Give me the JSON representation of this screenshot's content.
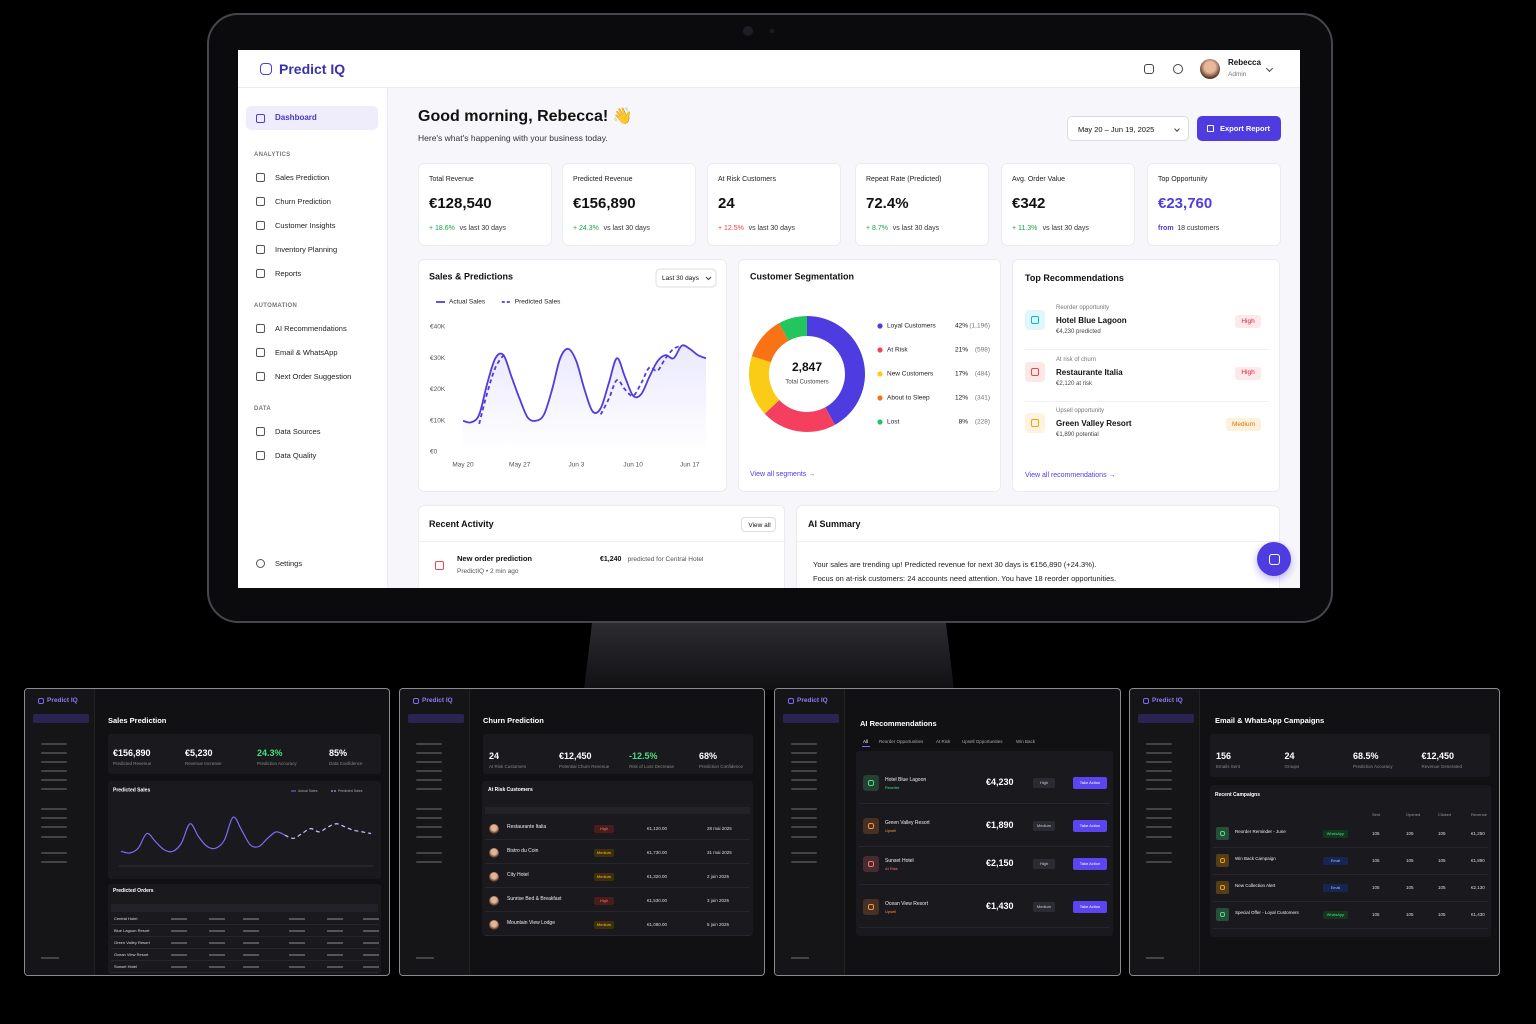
{
  "header": {
    "logo": "Predict IQ",
    "user_name": "Rebecca",
    "user_role": "Admin"
  },
  "sidebar": {
    "active": "Dashboard",
    "sections": [
      {
        "title": "ANALYTICS",
        "items": [
          "Sales Prediction",
          "Churn Prediction",
          "Customer Insights",
          "Inventory Planning",
          "Reports"
        ]
      },
      {
        "title": "AUTOMATION",
        "items": [
          "AI Recommendations",
          "Email & WhatsApp",
          "Next Order Suggestion"
        ]
      },
      {
        "title": "DATA",
        "items": [
          "Data Sources",
          "Data Quality"
        ]
      }
    ],
    "settings": "Settings"
  },
  "greeting": {
    "title": "Good morning, Rebecca! 👋",
    "subtitle": "Here's what's happening with your business today.",
    "date_range": "May 20 – Jun 19, 2025",
    "export": "Export Report"
  },
  "kpis": [
    {
      "label": "Total Revenue",
      "value": "€128,540",
      "change": "+ 18.6%",
      "note": "vs last 30 days",
      "trend": "up"
    },
    {
      "label": "Predicted Revenue",
      "value": "€156,890",
      "change": "+ 24.3%",
      "note": "vs last 30 days",
      "trend": "up"
    },
    {
      "label": "At Risk Customers",
      "value": "24",
      "change": "+ 12.5%",
      "note": "vs last 30 days",
      "trend": "down"
    },
    {
      "label": "Repeat Rate (Predicted)",
      "value": "72.4%",
      "change": "+ 8.7%",
      "note": "vs last 30 days",
      "trend": "up"
    },
    {
      "label": "Avg. Order Value",
      "value": "€342",
      "change": "+ 11.3%",
      "note": "vs last 30 days",
      "trend": "up"
    },
    {
      "label": "Top Opportunity",
      "value": "€23,760",
      "change": "from",
      "note": "18 customers",
      "trend": "highlight"
    }
  ],
  "chart_data": [
    {
      "type": "line",
      "title": "Sales & Predictions",
      "period": "Last 30 days",
      "categories": [
        "May 20",
        null,
        null,
        null,
        null,
        null,
        null,
        "May 27",
        null,
        null,
        null,
        null,
        null,
        null,
        "Jun 3",
        null,
        null,
        null,
        null,
        null,
        null,
        "Jun 10",
        null,
        null,
        null,
        null,
        null,
        null,
        "Jun 17",
        null,
        null
      ],
      "series": [
        {
          "name": "Actual Sales",
          "color": "#4f3ce0",
          "dashed": false,
          "values": [
            10000,
            9500,
            12000,
            22000,
            30000,
            31000,
            24000,
            17000,
            11000,
            10000,
            12000,
            20000,
            30000,
            33000,
            29000,
            20000,
            13000,
            14000,
            22000,
            30000,
            24000,
            18000,
            18500,
            24000,
            29000,
            31000,
            30000,
            34000,
            33000,
            31000,
            30000
          ]
        },
        {
          "name": "Predicted Sales",
          "color": "#4f3ce0",
          "dashed": true,
          "values": [
            null,
            null,
            9000,
            19000,
            27000,
            31000,
            null,
            null,
            null,
            null,
            null,
            null,
            null,
            null,
            null,
            null,
            null,
            12000,
            17000,
            23000,
            20000,
            18000,
            22000,
            27000,
            26000,
            30000,
            33000,
            34000,
            null,
            null,
            null
          ]
        }
      ],
      "ylim": [
        0,
        40000
      ],
      "yticks": [
        {
          "value": 0,
          "label": "€0"
        },
        {
          "value": 10000,
          "label": "€10K"
        },
        {
          "value": 20000,
          "label": "€20K"
        },
        {
          "value": 30000,
          "label": "€30K"
        },
        {
          "value": 40000,
          "label": "€40K"
        }
      ],
      "grid": false
    },
    {
      "type": "donut",
      "title": "Customer Segmentation",
      "total": {
        "value": 2847,
        "label": "2,847"
      },
      "total_label": "Total Customers",
      "categories": [
        "Loyal Customers",
        "At Risk",
        "New Customers",
        "About to Sleep",
        "Lost"
      ],
      "values": [
        42,
        21,
        17,
        12,
        8
      ],
      "value_labels": [
        "42%",
        "21%",
        "17%",
        "12%",
        "8%"
      ],
      "counts": [
        1196,
        598,
        484,
        341,
        228
      ],
      "count_labels": [
        "(1,196)",
        "(598)",
        "(484)",
        "(341)",
        "(228)"
      ],
      "colors": [
        "#4f3ce0",
        "#f43f5e",
        "#facc15",
        "#f97316",
        "#22c55e"
      ],
      "link": "View all segments →"
    },
    {
      "type": "line",
      "title": "Predicted Sales",
      "ylim": [
        0,
        40000
      ],
      "series": [
        {
          "name": "Actual Sales",
          "color": "#7c6cf5",
          "dashed": false,
          "values": [
            9000,
            8000,
            11000,
            20000,
            15000,
            10000,
            9000,
            14000,
            26000,
            18000,
            12000,
            11000,
            16000,
            30000,
            22000,
            13000,
            12000,
            17000,
            21000,
            19000,
            null,
            null,
            null,
            null,
            null,
            null,
            null,
            null,
            null,
            null
          ]
        },
        {
          "name": "Predicted Sales",
          "color": "#c9c3ff",
          "dashed": true,
          "values": [
            null,
            null,
            null,
            null,
            null,
            null,
            null,
            null,
            null,
            null,
            null,
            null,
            null,
            null,
            null,
            null,
            null,
            null,
            null,
            19000,
            17000,
            20000,
            23000,
            21000,
            24000,
            26000,
            24000,
            22000,
            21000,
            20000
          ]
        }
      ]
    }
  ],
  "recommendations": {
    "title": "Top Recommendations",
    "items": [
      {
        "kind": "Reorder opportunity",
        "name": "Hotel Blue Lagoon",
        "detail": "€4,230 predicted",
        "priority": "High",
        "color": "#06b6d4"
      },
      {
        "kind": "At risk of churn",
        "name": "Restaurante Italia",
        "detail": "€2,120 at risk",
        "priority": "High",
        "color": "#ef4444"
      },
      {
        "kind": "Upsell opportunity",
        "name": "Green Valley Resort",
        "detail": "€1,890 potential",
        "priority": "Medium",
        "color": "#f59e0b"
      }
    ],
    "link": "View all recommendations →"
  },
  "activity": {
    "title": "Recent Activity",
    "view_all": "View all",
    "items": [
      {
        "title": "New order prediction",
        "meta": "PredictIQ • 2 min ago",
        "amount": "€1,240",
        "detail": "predicted for Central Hotel"
      }
    ]
  },
  "ai_summary": {
    "title": "AI Summary",
    "lines": [
      "Your sales are trending up! Predicted revenue for next 30 days is €156,890 (+24.3%).",
      "Focus on at-risk customers: 24 accounts need attention. You have 18 reorder opportunities."
    ]
  },
  "previews": [
    {
      "title": "Sales Prediction",
      "kpis": [
        {
          "value": "€156,890",
          "label": "Predicted Revenue"
        },
        {
          "value": "€5,230",
          "label": "Revenue Increase"
        },
        {
          "value": "24.3%",
          "label": "Prediction Accuracy",
          "color": "#4ade80"
        },
        {
          "value": "85%",
          "label": "Data Confidence"
        }
      ],
      "table_title": "Predicted Orders",
      "rows": [
        "Central Hotel",
        "Blue Lagoon Resort",
        "Green Valley Resort",
        "Ocean View Resort",
        "Sunset Hotel"
      ]
    },
    {
      "title": "Churn Prediction",
      "kpis": [
        {
          "value": "24",
          "label": "At Risk Customers"
        },
        {
          "value": "€12,450",
          "label": "Potential Churn Revenue"
        },
        {
          "value": "-12.5%",
          "label": "Risk of Loss Decrease",
          "color": "#4ade80"
        },
        {
          "value": "68%",
          "label": "Prediction Confidence"
        }
      ],
      "table_title": "At Risk Customers",
      "rows": [
        [
          "Restaurante Italia",
          "High",
          "€1,120.00",
          "28 mai 2025"
        ],
        [
          "Bistro du Coin",
          "Medium",
          "€1,730.00",
          "31 mai 2025"
        ],
        [
          "City Hotel",
          "Medium",
          "€1,320.00",
          "2 juin 2025"
        ],
        [
          "Sunrise Bed & Breakfast",
          "High",
          "€1,530.00",
          "3 juin 2025"
        ],
        [
          "Mountain View Lodge",
          "Medium",
          "€1,080.00",
          "5 juin 2025"
        ]
      ]
    },
    {
      "title": "AI Recommendations",
      "tabs": [
        "All",
        "Reorder Opportunities",
        "At Risk",
        "Upsell Opportunities",
        "Win Back"
      ],
      "action": "Take Action",
      "items": [
        [
          "Hotel Blue Lagoon",
          "Reorder",
          "€4,230",
          "High"
        ],
        [
          "Green Valley Resort",
          "Upsell",
          "€1,890",
          "Medium"
        ],
        [
          "Sunset Hotel",
          "At Risk",
          "€2,150",
          "High"
        ],
        [
          "Ocean View Resort",
          "Upsell",
          "€1,430",
          "Medium"
        ]
      ]
    },
    {
      "title": "Email & WhatsApp Campaigns",
      "kpis": [
        {
          "value": "156",
          "label": "Emails Sent"
        },
        {
          "value": "24",
          "label": "Groups"
        },
        {
          "value": "68.5%",
          "label": "Prediction Accuracy"
        },
        {
          "value": "€12,450",
          "label": "Revenue Generated"
        }
      ],
      "table_title": "Recent Campaigns",
      "headers": [
        "Sent",
        "Opened",
        "Clicked",
        "Revenue"
      ],
      "rows": [
        [
          "Reorder Reminder - June",
          "WhatsApp",
          "105",
          "105",
          "105",
          "€1,250"
        ],
        [
          "Win Back Campaign",
          "Email",
          "105",
          "105",
          "105",
          "€1,890"
        ],
        [
          "New Collection Alert",
          "Email",
          "105",
          "105",
          "105",
          "€2,130"
        ],
        [
          "Special Offer - Loyal Customers",
          "WhatsApp",
          "105",
          "105",
          "105",
          "€1,430"
        ]
      ]
    }
  ]
}
